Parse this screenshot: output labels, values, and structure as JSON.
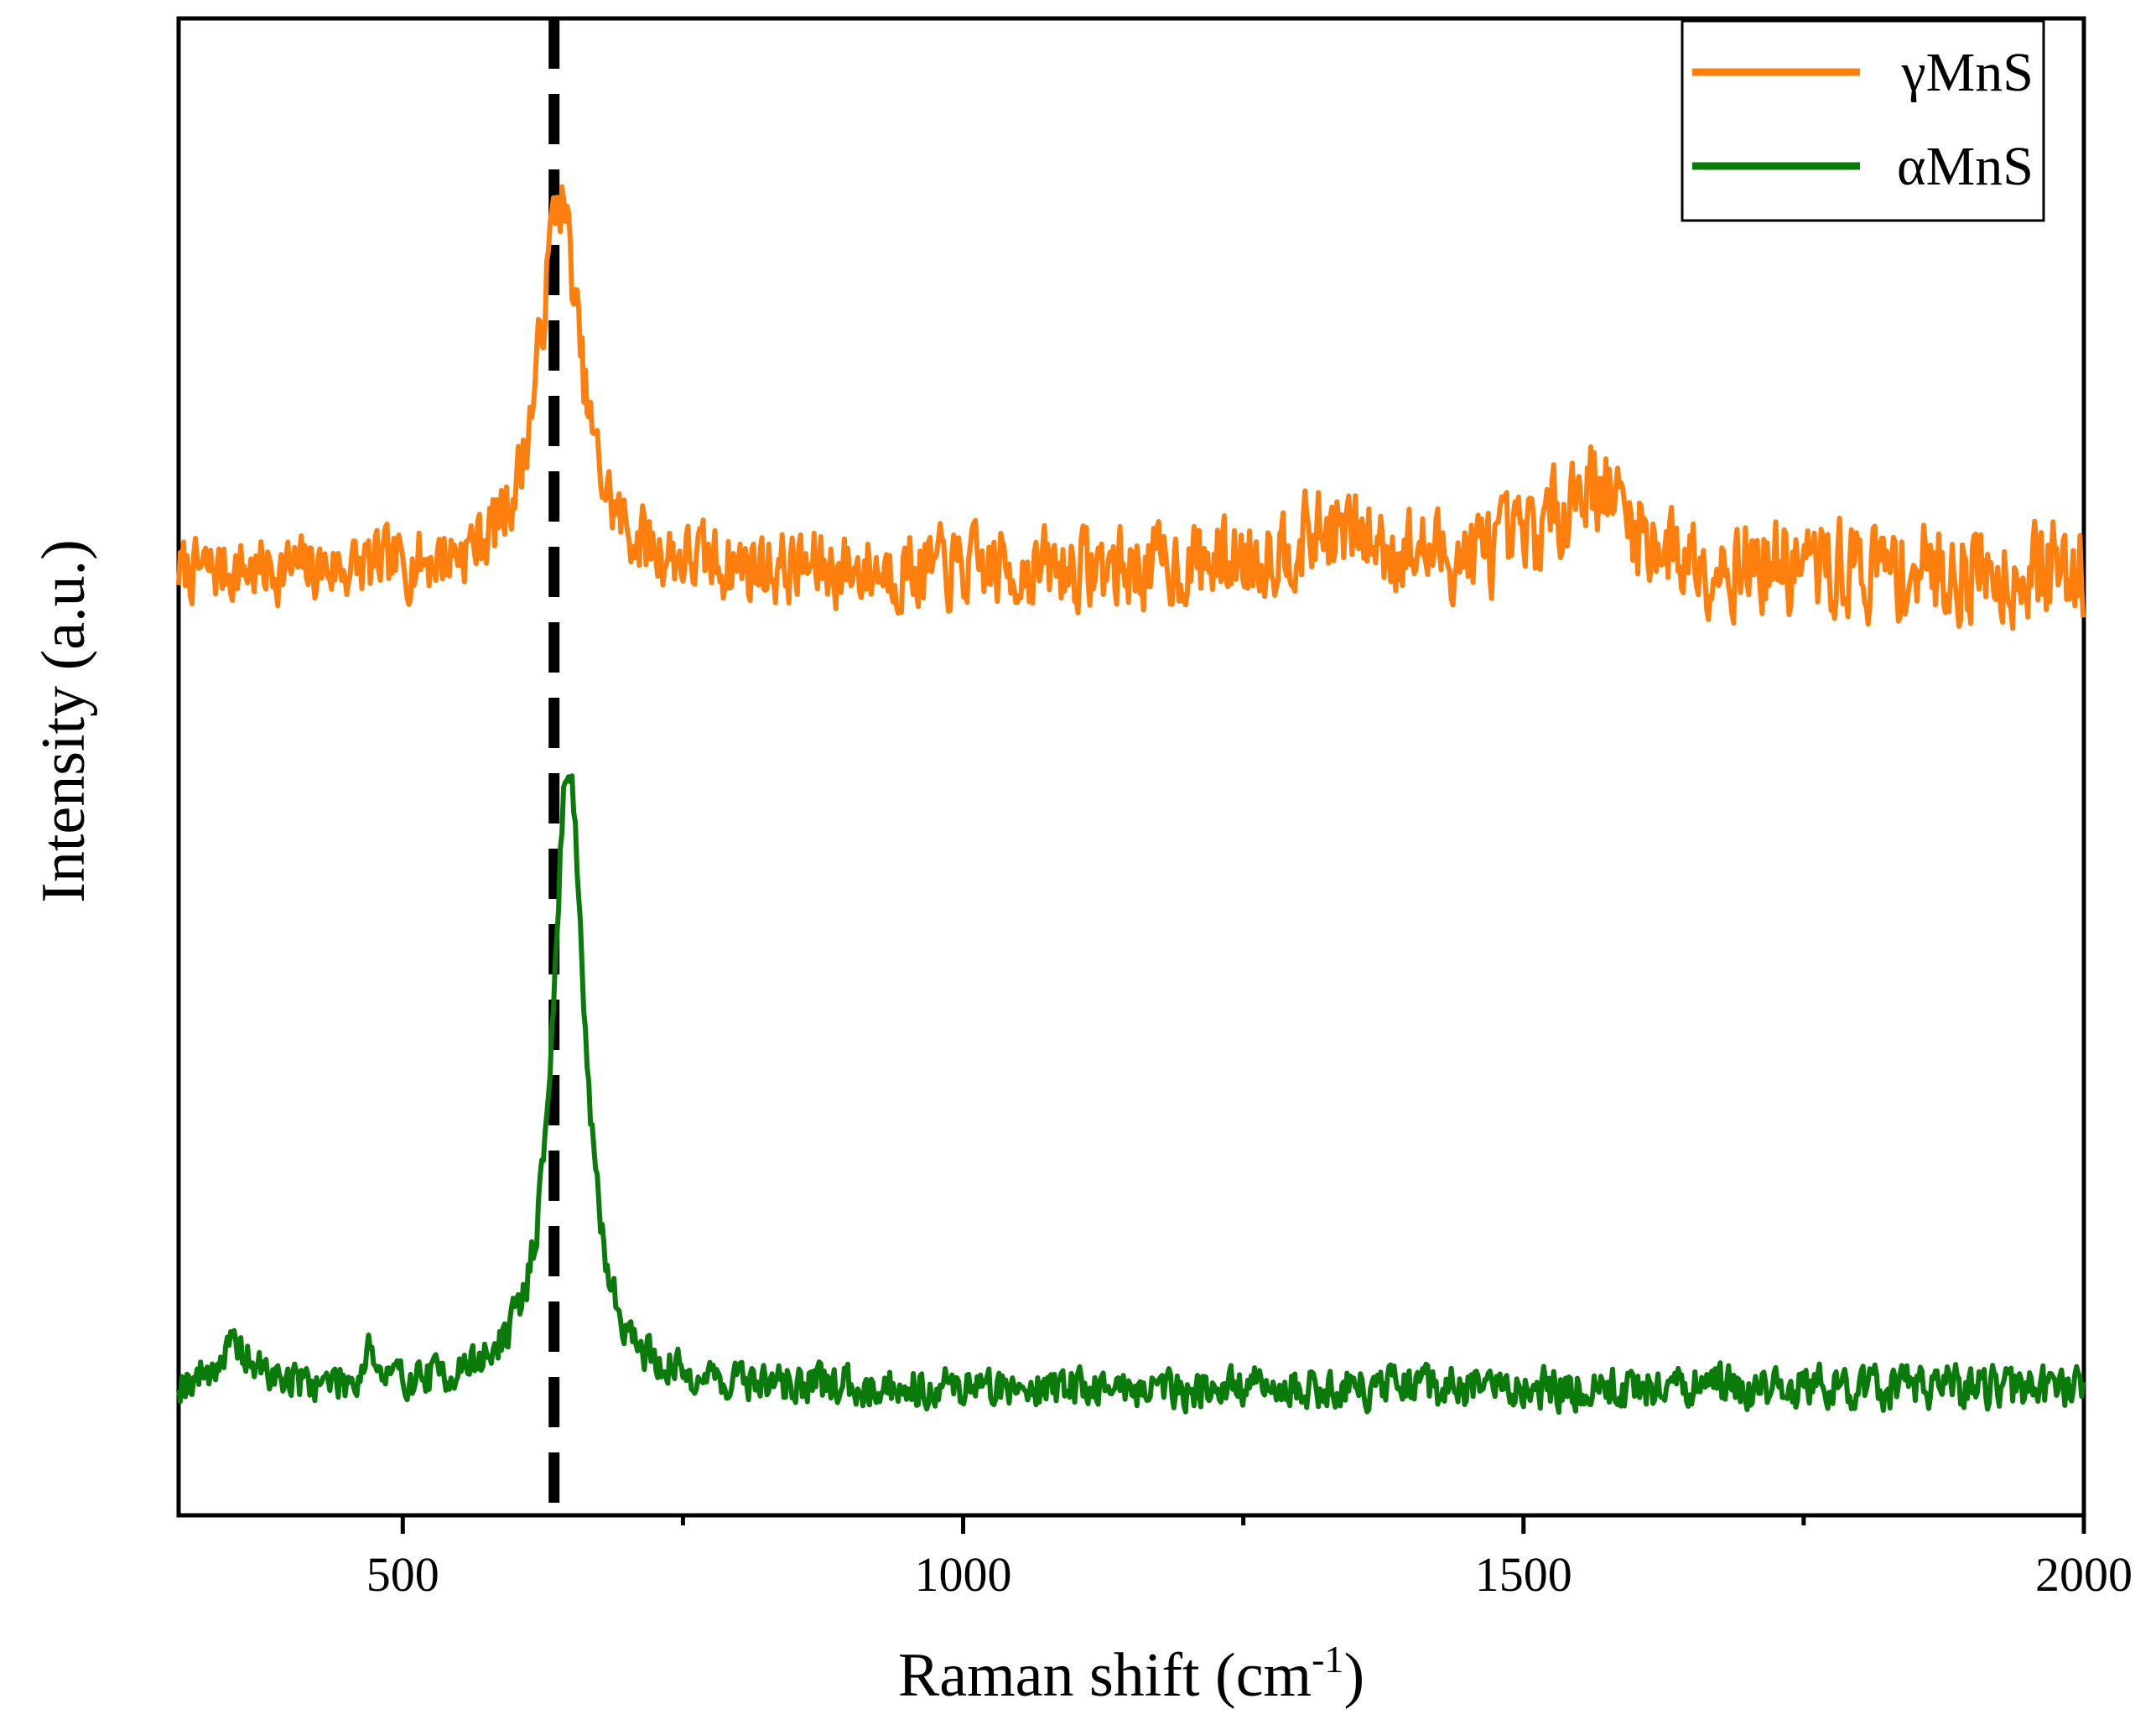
{
  "chart_data": {
    "type": "line",
    "title": "",
    "xlabel": "Raman shift (cm",
    "xlabel_sup": "-1",
    "xlabel_close": ")",
    "ylabel": "Intensity  (a.u.)",
    "xlim": [
      300,
      2000
    ],
    "ylim": [
      0,
      1
    ],
    "x_ticks": [
      500,
      1000,
      1500,
      2000
    ],
    "x_tick_labels": [
      "500",
      "1000",
      "1500",
      "2000"
    ],
    "x_minor_ticks": [
      750,
      1250,
      1750
    ],
    "reference_line": {
      "x": 635,
      "style": "dashed",
      "color": "#000000"
    },
    "legend": {
      "position": "top-right",
      "entries": [
        "γMnS",
        "αMnS"
      ]
    },
    "series": [
      {
        "name": "γMnS",
        "color": "#FF7F0E",
        "baseline": 0.63,
        "noise_base": 0.018,
        "noise_growth": 0.012,
        "seed": 7,
        "peaks": [
          {
            "center": 640,
            "height": 0.25,
            "width": 22
          },
          {
            "center": 1560,
            "height": 0.06,
            "width": 40
          },
          {
            "center": 1330,
            "height": 0.025,
            "width": 60
          }
        ]
      },
      {
        "name": "αMnS",
        "color": "#0A7A0A",
        "baseline": 0.085,
        "noise_base": 0.011,
        "noise_growth": 0.002,
        "seed": 19,
        "peaks": [
          {
            "center": 648,
            "height": 0.42,
            "width": 17
          },
          {
            "center": 470,
            "height": 0.03,
            "width": 4
          },
          {
            "center": 350,
            "height": 0.025,
            "width": 20
          }
        ]
      }
    ]
  }
}
